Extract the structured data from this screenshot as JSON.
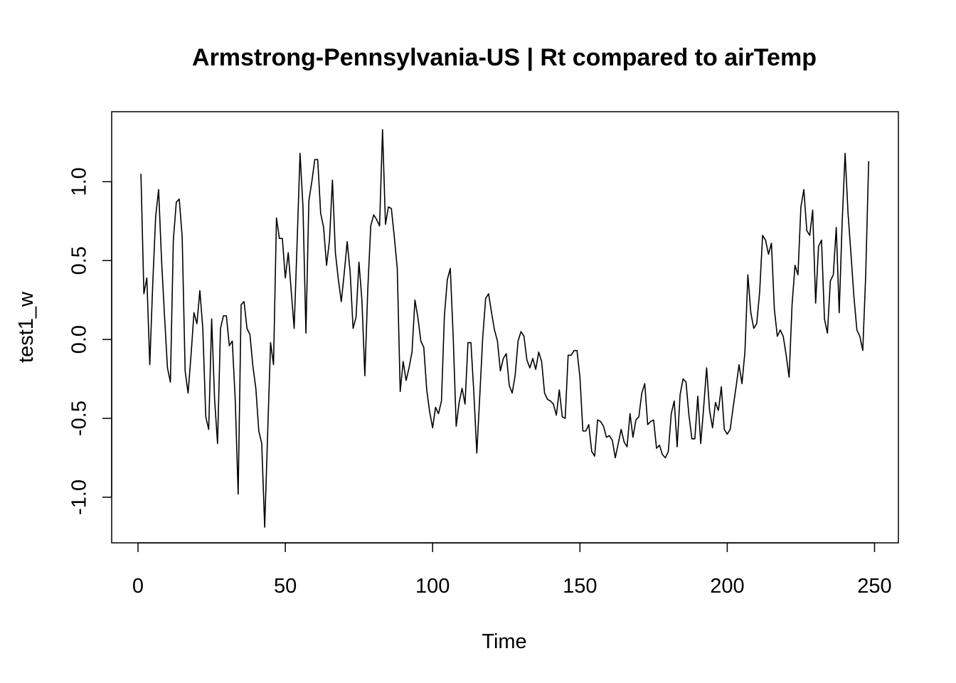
{
  "chart_data": {
    "type": "line",
    "title": "Armstrong-Pennsylvania-US | Rt compared to airTemp",
    "xlabel": "Time",
    "ylabel": "test1_w",
    "xlim": [
      1,
      248
    ],
    "ylim": [
      -1.19,
      1.34
    ],
    "x_ticks": [
      0,
      50,
      100,
      150,
      200,
      250
    ],
    "x_tick_labels": [
      "0",
      "50",
      "100",
      "150",
      "200",
      "250"
    ],
    "y_ticks": [
      -1.0,
      -0.5,
      0.0,
      0.5,
      1.0
    ],
    "y_tick_labels": [
      "-1.0",
      "-0.5",
      "0.0",
      "0.5",
      "1.0"
    ],
    "grid": false,
    "legend": "none",
    "series": [
      {
        "color": "#000000",
        "x_start": 1,
        "x_step": 1,
        "values": [
          1.05,
          0.29,
          0.39,
          -0.16,
          0.35,
          0.78,
          0.95,
          0.5,
          0.15,
          -0.18,
          -0.27,
          0.63,
          0.87,
          0.89,
          0.65,
          -0.2,
          -0.34,
          -0.1,
          0.17,
          0.1,
          0.31,
          0.07,
          -0.49,
          -0.57,
          0.13,
          -0.38,
          -0.66,
          0.07,
          0.15,
          0.15,
          -0.04,
          -0.01,
          -0.38,
          -0.98,
          0.22,
          0.24,
          0.07,
          0.03,
          -0.17,
          -0.31,
          -0.58,
          -0.66,
          -1.19,
          -0.6,
          -0.02,
          -0.16,
          0.77,
          0.64,
          0.64,
          0.39,
          0.55,
          0.31,
          0.07,
          0.61,
          1.18,
          0.84,
          0.04,
          0.88,
          1.0,
          1.14,
          1.14,
          0.8,
          0.71,
          0.47,
          0.63,
          1.01,
          0.55,
          0.38,
          0.24,
          0.42,
          0.62,
          0.43,
          0.07,
          0.14,
          0.49,
          0.25,
          -0.23,
          0.32,
          0.72,
          0.79,
          0.76,
          0.72,
          1.33,
          0.73,
          0.84,
          0.83,
          0.65,
          0.45,
          -0.33,
          -0.14,
          -0.26,
          -0.18,
          -0.08,
          0.25,
          0.14,
          -0.01,
          -0.05,
          -0.32,
          -0.46,
          -0.56,
          -0.43,
          -0.47,
          -0.39,
          0.15,
          0.38,
          0.45,
          0.01,
          -0.55,
          -0.4,
          -0.31,
          -0.41,
          -0.02,
          -0.02,
          -0.34,
          -0.72,
          -0.36,
          0.01,
          0.26,
          0.29,
          0.17,
          0.06,
          -0.01,
          -0.2,
          -0.12,
          -0.09,
          -0.29,
          -0.34,
          -0.23,
          -0.01,
          0.05,
          0.02,
          -0.13,
          -0.18,
          -0.12,
          -0.19,
          -0.08,
          -0.14,
          -0.34,
          -0.38,
          -0.39,
          -0.41,
          -0.48,
          -0.32,
          -0.49,
          -0.5,
          -0.1,
          -0.1,
          -0.07,
          -0.07,
          -0.24,
          -0.58,
          -0.58,
          -0.54,
          -0.71,
          -0.74,
          -0.51,
          -0.52,
          -0.55,
          -0.62,
          -0.61,
          -0.64,
          -0.75,
          -0.66,
          -0.57,
          -0.65,
          -0.68,
          -0.47,
          -0.62,
          -0.51,
          -0.49,
          -0.34,
          -0.28,
          -0.54,
          -0.52,
          -0.51,
          -0.69,
          -0.67,
          -0.73,
          -0.75,
          -0.71,
          -0.47,
          -0.39,
          -0.68,
          -0.35,
          -0.25,
          -0.27,
          -0.48,
          -0.63,
          -0.63,
          -0.36,
          -0.66,
          -0.43,
          -0.18,
          -0.45,
          -0.56,
          -0.4,
          -0.45,
          -0.3,
          -0.57,
          -0.6,
          -0.57,
          -0.43,
          -0.3,
          -0.16,
          -0.28,
          -0.08,
          0.41,
          0.17,
          0.07,
          0.1,
          0.3,
          0.66,
          0.63,
          0.54,
          0.61,
          0.19,
          0.02,
          0.06,
          0.02,
          -0.1,
          -0.24,
          0.22,
          0.47,
          0.41,
          0.84,
          0.95,
          0.69,
          0.66,
          0.82,
          0.23,
          0.59,
          0.63,
          0.13,
          0.04,
          0.37,
          0.41,
          0.71,
          0.17,
          0.74,
          1.18,
          0.8,
          0.54,
          0.27,
          0.06,
          0.02,
          -0.07,
          0.41,
          1.13
        ]
      }
    ]
  }
}
